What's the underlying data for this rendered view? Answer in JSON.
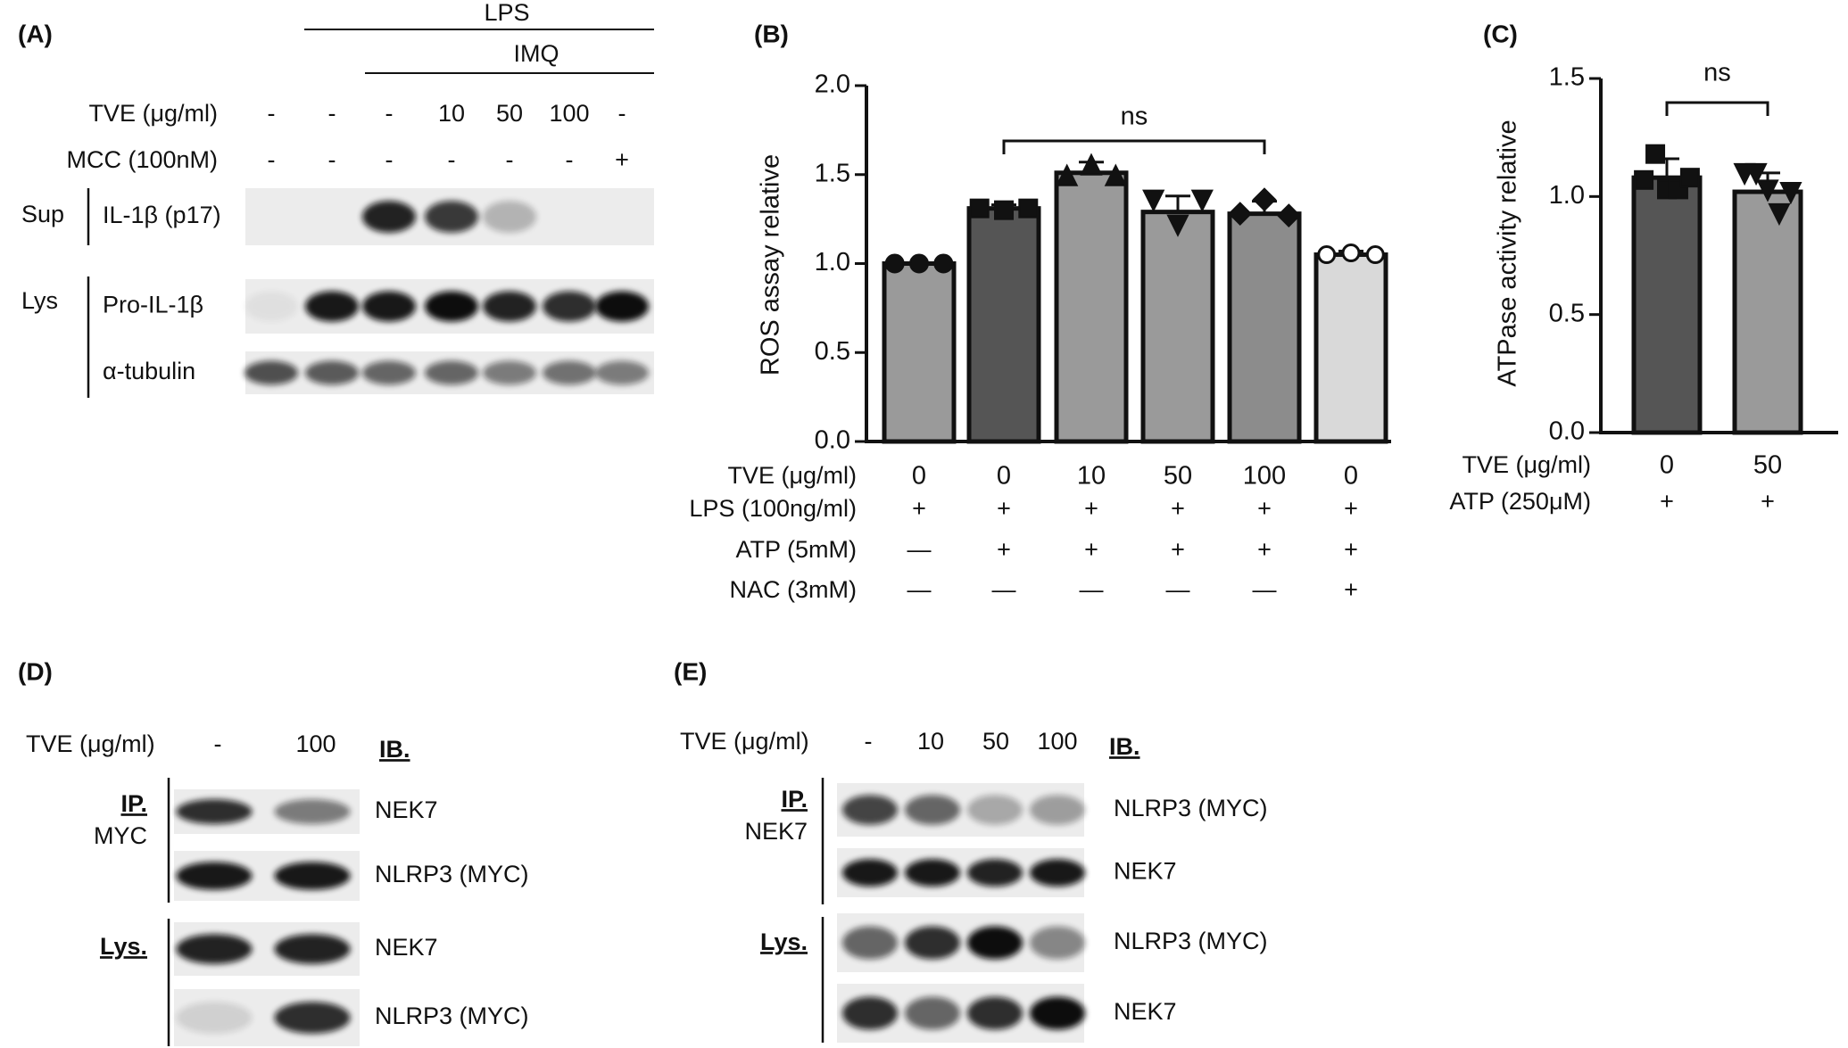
{
  "panels": {
    "a": {
      "label": "(A)",
      "lps": "LPS",
      "imq": "IMQ",
      "conditions": [
        {
          "name": "TVE (μg/ml)",
          "cells": [
            "-",
            "-",
            "-",
            "10",
            "50",
            "100",
            "-"
          ]
        },
        {
          "name": "MCC (100nM)",
          "cells": [
            "-",
            "-",
            "-",
            "-",
            "-",
            "-",
            "+"
          ]
        }
      ],
      "groups": [
        {
          "name": "Sup",
          "blots": [
            "IL-1β (p17)"
          ]
        },
        {
          "name": "Lys",
          "blots": [
            "Pro-IL-1β",
            "α-tubulin"
          ]
        }
      ]
    },
    "b": {
      "label": "(B)"
    },
    "c": {
      "label": "(C)"
    },
    "d": {
      "label": "(D)",
      "condition": {
        "name": "TVE (μg/ml)",
        "cells": [
          "-",
          "100"
        ]
      },
      "ib": "IB.",
      "groups": [
        {
          "name": "IP.",
          "sub": "MYC",
          "blots": [
            "NEK7",
            "NLRP3 (MYC)"
          ]
        },
        {
          "name": "Lys.",
          "blots": [
            "NEK7",
            "NLRP3 (MYC)"
          ]
        }
      ]
    },
    "e": {
      "label": "(E)",
      "condition": {
        "name": "TVE (μg/ml)",
        "cells": [
          "-",
          "10",
          "50",
          "100"
        ]
      },
      "ib": "IB.",
      "groups": [
        {
          "name": "IP.",
          "sub": "NEK7",
          "blots": [
            "NLRP3 (MYC)",
            "NEK7"
          ]
        },
        {
          "name": "Lys.",
          "blots": [
            "NLRP3 (MYC)",
            "NEK7"
          ]
        }
      ]
    }
  },
  "chart_data": [
    {
      "type": "bar",
      "y_label": "ROS assay relative",
      "ylim": [
        0,
        2
      ],
      "yticks": [
        {
          "value": 0,
          "label": "0.0"
        },
        {
          "value": 0.5,
          "label": "0.5"
        },
        {
          "value": 1,
          "label": "1.0"
        },
        {
          "value": 1.5,
          "label": "1.5"
        },
        {
          "value": 2,
          "label": "2.0"
        }
      ],
      "x_label": "TVE (μg/ml)",
      "categories": [
        "0",
        "0",
        "10",
        "50",
        "100",
        "0"
      ],
      "conditions": [
        {
          "name": "LPS (100ng/ml)",
          "cells": [
            "+",
            "+",
            "+",
            "+",
            "+",
            "+"
          ]
        },
        {
          "name": "ATP (5mM)",
          "cells": [
            "—",
            "+",
            "+",
            "+",
            "+",
            "+"
          ]
        },
        {
          "name": "NAC (3mM)",
          "cells": [
            "—",
            "—",
            "—",
            "—",
            "—",
            "+"
          ]
        }
      ],
      "series": [
        {
          "values": [
            1.0,
            1.31,
            1.51,
            1.29,
            1.28,
            1.05
          ],
          "errors": [
            0.0,
            0.02,
            0.06,
            0.09,
            0.07,
            0.02
          ],
          "colors": [
            "#9a9a9a",
            "#555555",
            "#9a9a9a",
            "#9a9a9a",
            "#8c8c8c",
            "#d9d9d9"
          ],
          "markers": [
            "circle",
            "square",
            "triangle-up",
            "triangle-down",
            "diamond",
            "circle-open"
          ],
          "points": [
            [
              1.0,
              1.0,
              1.0
            ],
            [
              1.31,
              1.3,
              1.31
            ],
            [
              1.49,
              1.55,
              1.49
            ],
            [
              1.36,
              1.22,
              1.36
            ],
            [
              1.28,
              1.36,
              1.27
            ],
            [
              1.05,
              1.06,
              1.05
            ]
          ]
        }
      ],
      "annotation": "ns"
    },
    {
      "type": "bar",
      "y_label": "ATPase activity relative",
      "ylim": [
        0,
        1.5
      ],
      "yticks": [
        {
          "value": 0,
          "label": "0.0"
        },
        {
          "value": 0.5,
          "label": "0.5"
        },
        {
          "value": 1,
          "label": "1.0"
        },
        {
          "value": 1.5,
          "label": "1.5"
        }
      ],
      "x_label": "TVE (μg/ml)",
      "categories": [
        "0",
        "50"
      ],
      "conditions": [
        {
          "name": "ATP (250μM)",
          "cells": [
            "+",
            "+"
          ]
        }
      ],
      "series": [
        {
          "values": [
            1.08,
            1.02
          ],
          "errors": [
            0.08,
            0.08
          ],
          "colors": [
            "#555555",
            "#9a9a9a"
          ],
          "markers": [
            "square",
            "triangle-down"
          ],
          "points": [
            [
              1.07,
              1.18,
              1.03,
              1.03,
              1.08
            ],
            [
              1.1,
              1.1,
              1.03,
              0.93,
              1.02
            ]
          ]
        }
      ],
      "annotation": "ns"
    }
  ]
}
